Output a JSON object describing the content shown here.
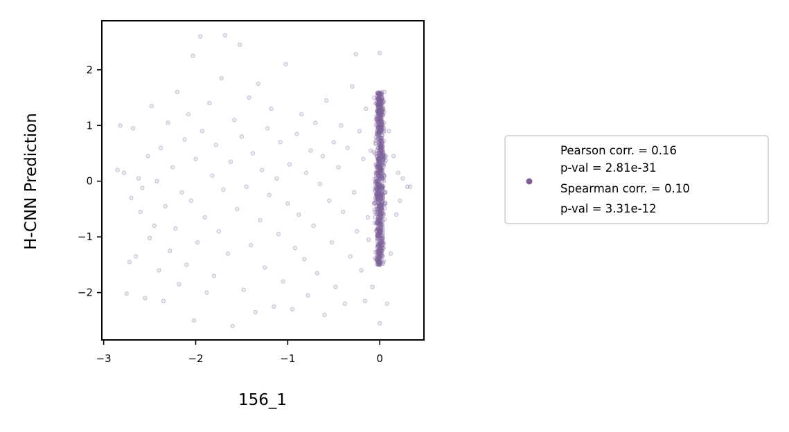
{
  "chart_data": {
    "type": "scatter",
    "xlabel": "156_1",
    "ylabel": "H-CNN Prediction",
    "xlim": [
      -3.02,
      0.48
    ],
    "ylim": [
      -2.85,
      2.88
    ],
    "xticks": [
      -3,
      -2,
      -1,
      0
    ],
    "xtick_labels": [
      "−3",
      "−2",
      "−1",
      "0"
    ],
    "yticks": [
      -2,
      -1,
      0,
      1,
      2
    ],
    "ytick_labels": [
      "−2",
      "−1",
      "0",
      "1",
      "2"
    ],
    "grid": false,
    "legend_placement": "right, outside plot",
    "legend": [
      "Pearson corr. = 0.16",
      "p-val = 2.81e-31",
      "Spearman corr. = 0.10",
      "p-val = 3.31e-12"
    ],
    "marker_color": "#7f609a",
    "series": [
      {
        "points": [
          [
            -2.85,
            0.2
          ],
          [
            -2.82,
            1.0
          ],
          [
            -2.78,
            0.15
          ],
          [
            -2.75,
            -2.02
          ],
          [
            -2.72,
            -1.45
          ],
          [
            -2.7,
            -0.3
          ],
          [
            -2.68,
            0.95
          ],
          [
            -2.65,
            -1.35
          ],
          [
            -2.62,
            0.05
          ],
          [
            -2.6,
            -0.55
          ],
          [
            -2.58,
            -0.12
          ],
          [
            -2.55,
            -2.1
          ],
          [
            -2.52,
            0.45
          ],
          [
            -2.5,
            -1.02
          ],
          [
            -2.48,
            1.35
          ],
          [
            -2.45,
            -0.8
          ],
          [
            -2.42,
            0.0
          ],
          [
            -2.4,
            -1.6
          ],
          [
            -2.38,
            0.6
          ],
          [
            -2.35,
            -2.15
          ],
          [
            -2.33,
            -0.45
          ],
          [
            -2.3,
            1.05
          ],
          [
            -2.28,
            -1.25
          ],
          [
            -2.25,
            0.25
          ],
          [
            -2.22,
            -0.85
          ],
          [
            -2.2,
            1.6
          ],
          [
            -2.18,
            -1.85
          ],
          [
            -2.15,
            -0.2
          ],
          [
            -2.12,
            0.75
          ],
          [
            -2.1,
            -1.5
          ],
          [
            -2.08,
            1.2
          ],
          [
            -2.05,
            -0.35
          ],
          [
            -2.03,
            2.25
          ],
          [
            -2.02,
            -2.5
          ],
          [
            -2.0,
            0.4
          ],
          [
            -1.98,
            -1.1
          ],
          [
            -1.95,
            2.6
          ],
          [
            -1.93,
            0.9
          ],
          [
            -1.9,
            -0.65
          ],
          [
            -1.88,
            -2.0
          ],
          [
            -1.85,
            1.4
          ],
          [
            -1.82,
            0.1
          ],
          [
            -1.8,
            -1.7
          ],
          [
            -1.78,
            0.65
          ],
          [
            -1.75,
            -0.9
          ],
          [
            -1.72,
            1.85
          ],
          [
            -1.7,
            -0.15
          ],
          [
            -1.68,
            2.62
          ],
          [
            -1.65,
            -1.3
          ],
          [
            -1.62,
            0.35
          ],
          [
            -1.6,
            -2.6
          ],
          [
            -1.58,
            1.1
          ],
          [
            -1.55,
            -0.5
          ],
          [
            -1.52,
            2.45
          ],
          [
            -1.5,
            0.8
          ],
          [
            -1.48,
            -1.95
          ],
          [
            -1.45,
            -0.1
          ],
          [
            -1.42,
            1.5
          ],
          [
            -1.4,
            -1.15
          ],
          [
            -1.38,
            0.5
          ],
          [
            -1.35,
            -2.35
          ],
          [
            -1.32,
            1.75
          ],
          [
            -1.3,
            -0.7
          ],
          [
            -1.28,
            0.2
          ],
          [
            -1.25,
            -1.55
          ],
          [
            -1.22,
            0.95
          ],
          [
            -1.2,
            -0.25
          ],
          [
            -1.18,
            1.3
          ],
          [
            -1.15,
            -2.25
          ],
          [
            -1.12,
            0.05
          ],
          [
            -1.1,
            -0.95
          ],
          [
            -1.08,
            0.7
          ],
          [
            -1.05,
            -1.8
          ],
          [
            -1.02,
            2.1
          ],
          [
            -1.0,
            -0.4
          ],
          [
            -0.98,
            0.3
          ],
          [
            -0.95,
            -2.3
          ],
          [
            -0.92,
            -1.2
          ],
          [
            -0.9,
            0.85
          ],
          [
            -0.88,
            -0.6
          ],
          [
            -0.85,
            1.2
          ],
          [
            -0.82,
            -1.4
          ],
          [
            -0.8,
            0.15
          ],
          [
            -0.78,
            -2.05
          ],
          [
            -0.75,
            0.55
          ],
          [
            -0.72,
            -0.8
          ],
          [
            -0.7,
            1.05
          ],
          [
            -0.68,
            -1.65
          ],
          [
            -0.65,
            -0.05
          ],
          [
            -0.62,
            0.45
          ],
          [
            -0.6,
            -2.4
          ],
          [
            -0.58,
            1.45
          ],
          [
            -0.55,
            -0.35
          ],
          [
            -0.52,
            -1.1
          ],
          [
            -0.5,
            0.7
          ],
          [
            -0.48,
            -1.9
          ],
          [
            -0.45,
            0.25
          ],
          [
            -0.42,
            1.0
          ],
          [
            -0.4,
            -0.55
          ],
          [
            -0.38,
            -2.2
          ],
          [
            -0.35,
            0.6
          ],
          [
            -0.32,
            -1.35
          ],
          [
            -0.3,
            1.7
          ],
          [
            -0.28,
            -0.2
          ],
          [
            -0.26,
            2.28
          ],
          [
            -0.25,
            -0.9
          ],
          [
            -0.22,
            0.9
          ],
          [
            -0.2,
            -1.6
          ],
          [
            -0.18,
            0.4
          ],
          [
            -0.16,
            -2.15
          ],
          [
            -0.15,
            1.3
          ],
          [
            -0.13,
            -0.65
          ],
          [
            -0.12,
            -1.05
          ],
          [
            -0.1,
            0.55
          ],
          [
            -0.08,
            -1.9
          ],
          [
            -0.06,
            1.5
          ],
          [
            -0.05,
            -0.3
          ],
          [
            0.0,
            2.3
          ],
          [
            0.0,
            -2.55
          ],
          [
            0.05,
            1.6
          ],
          [
            0.08,
            -2.2
          ],
          [
            0.1,
            0.9
          ],
          [
            0.12,
            -1.3
          ],
          [
            0.15,
            0.45
          ],
          [
            0.18,
            -0.6
          ],
          [
            0.2,
            0.15
          ],
          [
            0.22,
            -0.35
          ],
          [
            0.25,
            0.05
          ],
          [
            0.3,
            -0.1
          ],
          [
            0.33,
            -0.1
          ]
        ]
      }
    ],
    "dense_cluster": {
      "x_center": 0.0,
      "x_spread": 0.075,
      "y_range": [
        -1.5,
        1.6
      ]
    }
  }
}
